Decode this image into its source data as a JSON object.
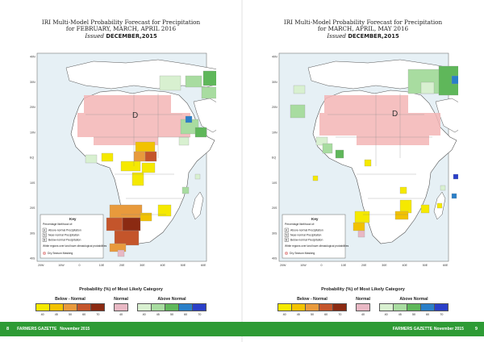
{
  "pages": [
    {
      "title_line1": "IRI Multi-Model Probability Forecast for Precipitation",
      "title_line2": "for FEBRUARY, MARCH, APRIL 2016",
      "issued_label": "Issued",
      "issued_value": "DECEMBER,2015",
      "dry_label": "D",
      "page_number": "8",
      "footer_publication": "FARMERS GAZETTE",
      "footer_date": "November 2015"
    },
    {
      "title_line1": "IRI Multi-Model Probability Forecast for Precipitation",
      "title_line2": "for MARCH, APRIL, MAY 2016",
      "issued_label": "Issued",
      "issued_value": "DECEMBER,2015",
      "dry_label": "D",
      "page_number": "9",
      "footer_publication": "FARMERS GAZETTE",
      "footer_date": "November 2015"
    }
  ],
  "map": {
    "lat_labels": [
      "40N",
      "30N",
      "20N",
      "10N",
      "EQ",
      "10S",
      "20S",
      "30S",
      "40S"
    ],
    "lon_labels": [
      "20W",
      "10W",
      "0",
      "10E",
      "20E",
      "30E",
      "40E",
      "50E",
      "60E"
    ]
  },
  "key": {
    "title": "Key",
    "subtitle": "Percentage likelihood of:",
    "items": [
      {
        "letter": "A",
        "text": "Above-normal Precipitation"
      },
      {
        "letter": "N",
        "text": "Near-normal Precipitation"
      },
      {
        "letter": "B",
        "text": "Below-normal Precipitation"
      }
    ],
    "note": "White regions over land have climatological probabilities",
    "dry": "Dry Season Masking"
  },
  "legend": {
    "title": "Probability (%) of Most Likely Category",
    "below_label": "Below - Normal",
    "normal_label": "Normal",
    "above_label": "Above Normal",
    "below_ticks": [
      "40",
      "45",
      "50",
      "60",
      "70"
    ],
    "normal_ticks": [
      "40"
    ],
    "above_ticks": [
      "40",
      "45",
      "50",
      "60",
      "70"
    ],
    "below_colors": [
      "#f5e900",
      "#f2c200",
      "#e89a3c",
      "#c4552b",
      "#8b2a12"
    ],
    "normal_colors": [
      "#e8b8c4"
    ],
    "above_colors": [
      "#d8f0d0",
      "#a8dca0",
      "#5fb75a",
      "#2a7fc8",
      "#2a3fc8"
    ]
  },
  "colors": {
    "footer_green": "#2e9b35",
    "dry_mask": "#f3b5b5",
    "ocean": "#e6f0f5"
  }
}
